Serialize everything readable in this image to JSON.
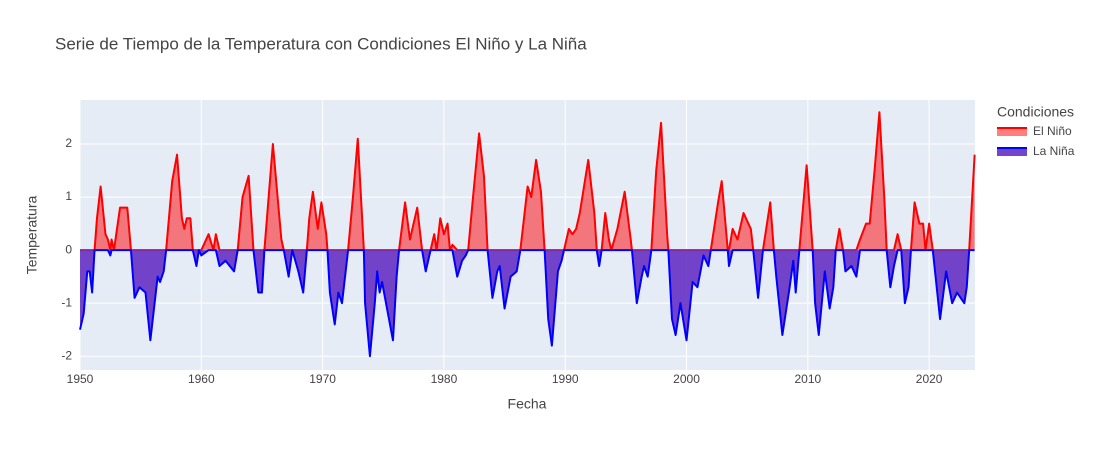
{
  "chart_data": {
    "type": "area",
    "title": "Serie de Tiempo de la Temperatura con Condiciones El Niño y La Niña",
    "x_label": "Fecha",
    "y_label": "Temperatura",
    "legend_title": "Condiciones",
    "legend": "right",
    "grid": true,
    "xlim": [
      1950,
      2023.78
    ],
    "ylim": [
      -2.26,
      2.83
    ],
    "xticks": [
      1950,
      1960,
      1970,
      1980,
      1990,
      2000,
      2010,
      2020
    ],
    "yticks": [
      -2,
      -1,
      0,
      1,
      2
    ],
    "x": [
      1950,
      1950.3,
      1950.6,
      1950.8,
      1951.0,
      1951.2,
      1951.4,
      1951.7,
      1952.1,
      1952.3,
      1952.5,
      1952.6,
      1952.8,
      1953.3,
      1953.9,
      1954.2,
      1954.5,
      1954.9,
      1955.4,
      1955.8,
      1956.4,
      1956.6,
      1956.9,
      1957.1,
      1957.6,
      1958.0,
      1958.4,
      1958.6,
      1958.8,
      1959.1,
      1959.3,
      1959.6,
      1959.8,
      1960.0,
      1960.6,
      1961.0,
      1961.2,
      1961.5,
      1962.0,
      1962.7,
      1963.0,
      1963.4,
      1963.9,
      1964.3,
      1964.7,
      1965.0,
      1965.2,
      1965.9,
      1966.6,
      1966.8,
      1967.2,
      1967.5,
      1968.0,
      1968.4,
      1968.7,
      1968.9,
      1969.2,
      1969.6,
      1969.9,
      1970.3,
      1970.4,
      1970.6,
      1971.0,
      1971.3,
      1971.6,
      1972.1,
      1972.5,
      1972.9,
      1973.4,
      1973.5,
      1973.9,
      1974.3,
      1974.5,
      1974.7,
      1974.9,
      1975.8,
      1976.1,
      1976.3,
      1976.8,
      1977.2,
      1977.8,
      1978.2,
      1978.5,
      1978.9,
      1979.2,
      1979.4,
      1979.7,
      1980.0,
      1980.3,
      1980.5,
      1980.7,
      1981.1,
      1981.5,
      1981.8,
      1982.0,
      1982.4,
      1982.9,
      1983.3,
      1983.6,
      1984.0,
      1984.4,
      1984.6,
      1985.0,
      1985.5,
      1986.0,
      1986.3,
      1986.9,
      1987.2,
      1987.6,
      1988.0,
      1988.3,
      1988.6,
      1988.9,
      1989.4,
      1989.7,
      1989.9,
      1990.3,
      1990.6,
      1990.9,
      1991.2,
      1991.9,
      1992.4,
      1992.6,
      1992.8,
      1993.0,
      1993.3,
      1993.6,
      1993.8,
      1994.3,
      1994.9,
      1995.4,
      1995.5,
      1995.9,
      1996.3,
      1996.5,
      1996.8,
      1997.1,
      1997.5,
      1997.9,
      1998.4,
      1998.5,
      1998.8,
      1999.1,
      1999.5,
      2000.0,
      2000.5,
      2000.9,
      2001.4,
      2001.8,
      2002.0,
      2002.6,
      2002.9,
      2003.4,
      2003.5,
      2003.8,
      2004.2,
      2004.7,
      2005.3,
      2005.5,
      2005.9,
      2006.3,
      2006.9,
      2007.2,
      2007.4,
      2007.9,
      2008.5,
      2008.8,
      2009.0,
      2009.3,
      2009.9,
      2010.4,
      2010.6,
      2010.9,
      2011.4,
      2011.8,
      2012.1,
      2012.3,
      2012.6,
      2012.9,
      2013.1,
      2013.6,
      2014.0,
      2014.3,
      2014.8,
      2015.1,
      2015.5,
      2015.9,
      2016.3,
      2016.5,
      2016.8,
      2017.1,
      2017.4,
      2017.7,
      2018.0,
      2018.3,
      2018.5,
      2018.8,
      2019.2,
      2019.5,
      2019.7,
      2020.0,
      2020.3,
      2020.9,
      2021.4,
      2021.9,
      2022.3,
      2022.9,
      2023.1,
      2023.3,
      2023.75
    ],
    "series": [
      {
        "name": "El Niño",
        "color": "#ff0000",
        "fill": "rgba(255,0,0,0.5)",
        "values": [
          0,
          0,
          0,
          0,
          0,
          0,
          0.6,
          1.2,
          0.3,
          0.2,
          0,
          0.2,
          0,
          0.8,
          0.8,
          0,
          0,
          0,
          0,
          0,
          0,
          0,
          0,
          0,
          1.3,
          1.8,
          0.6,
          0.4,
          0.6,
          0.6,
          0,
          0,
          0,
          0,
          0.3,
          0,
          0.3,
          0,
          0,
          0,
          0,
          1.0,
          1.4,
          0,
          0,
          0,
          0,
          2.0,
          0.2,
          0,
          0,
          0,
          0,
          0,
          0,
          0.6,
          1.1,
          0.4,
          0.9,
          0.3,
          0,
          0,
          0,
          0,
          0,
          0,
          1.0,
          2.1,
          0,
          0,
          0,
          0,
          0,
          0,
          0,
          0,
          0,
          0,
          0.9,
          0.2,
          0.8,
          0,
          0,
          0,
          0.3,
          0,
          0.6,
          0.3,
          0.5,
          0,
          0.1,
          0,
          0,
          0,
          0,
          1.0,
          2.2,
          1.4,
          0,
          0,
          0,
          0,
          0,
          0,
          0,
          0,
          1.2,
          1.0,
          1.7,
          1.1,
          0,
          0,
          0,
          0,
          0,
          0,
          0.4,
          0.3,
          0.4,
          0.7,
          1.7,
          0.7,
          0,
          0,
          0,
          0.7,
          0.2,
          0,
          0.4,
          1.1,
          0.2,
          0,
          0,
          0,
          0,
          0,
          0,
          1.5,
          2.4,
          0.3,
          0,
          0,
          0,
          0,
          0,
          0,
          0,
          0,
          0,
          0,
          0.9,
          1.3,
          0,
          0,
          0.4,
          0.2,
          0.7,
          0.4,
          0,
          0,
          0,
          0.9,
          0,
          0,
          0,
          0,
          0,
          0,
          0,
          1.6,
          0,
          0,
          0,
          0,
          0,
          0,
          0,
          0.4,
          0,
          0,
          0,
          0,
          0.2,
          0.5,
          0.5,
          1.5,
          2.6,
          1.0,
          0,
          0,
          0,
          0.3,
          0,
          0,
          0,
          0,
          0.9,
          0.5,
          0.5,
          0,
          0.5,
          0,
          0,
          0,
          0,
          0,
          0,
          0,
          0,
          1.8
        ]
      },
      {
        "name": "La Niña",
        "color": "#0000ff",
        "fill": "rgba(104,52,196,0.92)",
        "values": [
          -1.5,
          -1.2,
          -0.4,
          -0.4,
          -0.8,
          0,
          0,
          0,
          0,
          0,
          -0.1,
          0,
          0,
          0,
          0,
          0,
          -0.9,
          -0.7,
          -0.8,
          -1.7,
          -0.5,
          -0.6,
          -0.4,
          0,
          0,
          0,
          0,
          0,
          0,
          0,
          0,
          -0.3,
          0,
          -0.1,
          0,
          0,
          0,
          -0.3,
          -0.2,
          -0.4,
          0,
          0,
          0,
          0,
          -0.8,
          -0.8,
          0,
          0,
          0,
          0,
          -0.5,
          0,
          -0.4,
          -0.8,
          0,
          0,
          0,
          0,
          0,
          0,
          0,
          -0.8,
          -1.4,
          -0.8,
          -1.0,
          0,
          0,
          0,
          0,
          -1.0,
          -2.0,
          -1.0,
          -0.4,
          -0.8,
          -0.6,
          -1.7,
          -0.5,
          0,
          0,
          0,
          0,
          0,
          -0.4,
          0,
          0,
          0,
          0,
          0,
          0,
          0,
          0,
          -0.5,
          -0.2,
          -0.1,
          0,
          0,
          0,
          0,
          0,
          -0.9,
          -0.4,
          -0.3,
          -1.1,
          -0.5,
          -0.4,
          0,
          0,
          0,
          0,
          0,
          0,
          -1.3,
          -1.8,
          -0.4,
          -0.2,
          0,
          0,
          0,
          0,
          0,
          0,
          0,
          0,
          -0.3,
          0,
          0,
          0,
          0,
          0,
          0,
          0,
          0,
          -1.0,
          -0.5,
          -0.3,
          -0.5,
          0,
          0,
          0,
          0,
          0,
          -1.3,
          -1.6,
          -1.0,
          -1.7,
          -0.6,
          -0.7,
          -0.1,
          -0.3,
          0,
          0,
          0,
          0,
          -0.3,
          0,
          0,
          0,
          0,
          0,
          -0.9,
          0,
          0,
          0,
          -0.5,
          -1.6,
          -0.7,
          -0.2,
          -0.8,
          0,
          0,
          0,
          -1.0,
          -1.6,
          -0.4,
          -1.1,
          -0.7,
          0,
          0,
          0,
          -0.4,
          -0.3,
          -0.5,
          0,
          0,
          0,
          0,
          0,
          0,
          0,
          -0.7,
          -0.3,
          0,
          0,
          -1.0,
          -0.7,
          0,
          0,
          0,
          0,
          0,
          0,
          0,
          -1.3,
          -0.4,
          -1.0,
          -0.8,
          -1.0,
          -0.7,
          0,
          0
        ]
      }
    ]
  }
}
